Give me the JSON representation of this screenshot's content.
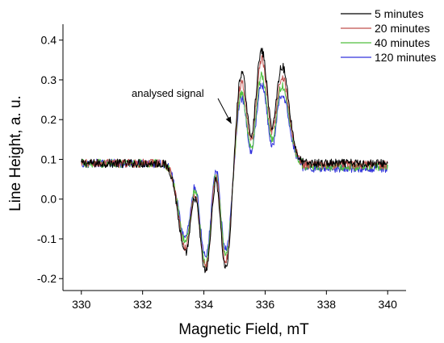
{
  "chart_data": {
    "type": "line",
    "xlabel": "Magnetic Field, mT",
    "ylabel": "Line Height, a. u.",
    "xlim": [
      329.4,
      340.6
    ],
    "ylim": [
      -0.23,
      0.44
    ],
    "xticks": [
      330,
      332,
      334,
      336,
      338,
      340
    ],
    "yticks": [
      -0.2,
      -0.1,
      0.0,
      0.1,
      0.2,
      0.3,
      0.4
    ],
    "ytick_labels": [
      "-0.2",
      "-0.1",
      "0.0",
      "0.1",
      "0.2",
      "0.3",
      "0.4"
    ],
    "legend_position": "top-right",
    "grid": false,
    "annotation": {
      "text": "analysed signal",
      "points_to": [
        335.0,
        0.19
      ]
    },
    "series": [
      {
        "name": "5 minutes",
        "color": "#000000",
        "extremes": {
          "peak_1": 0.335,
          "peak_2": 0.375,
          "peak_3": 0.335,
          "trough_1": -0.14,
          "trough_2": -0.185,
          "trough_3": -0.19
        }
      },
      {
        "name": "20 minutes",
        "color": "#c0504d",
        "extremes": {
          "peak_1": 0.31,
          "peak_2": 0.355,
          "peak_3": 0.31,
          "trough_1": -0.125,
          "trough_2": -0.175,
          "trough_3": -0.17
        }
      },
      {
        "name": "40 minutes",
        "color": "#4fbf3f",
        "extremes": {
          "peak_1": 0.28,
          "peak_2": 0.315,
          "peak_3": 0.285,
          "trough_1": -0.11,
          "trough_2": -0.165,
          "trough_3": -0.155
        }
      },
      {
        "name": "120 minutes",
        "color": "#3333dd",
        "extremes": {
          "peak_1": 0.27,
          "peak_2": 0.29,
          "peak_3": 0.265,
          "trough_1": -0.1,
          "trough_2": -0.145,
          "trough_3": -0.14
        }
      }
    ]
  }
}
